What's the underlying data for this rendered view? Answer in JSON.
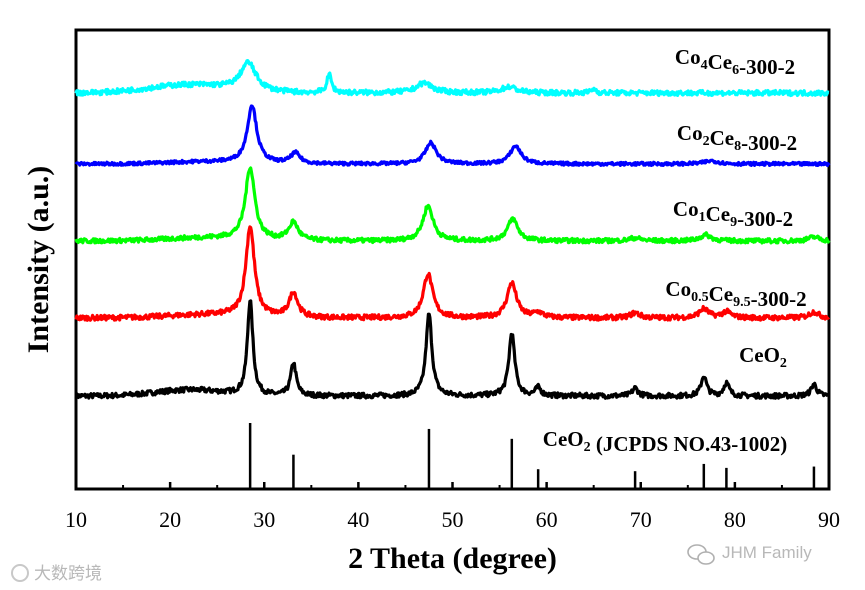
{
  "chart_data": {
    "type": "line",
    "xlabel": "2 Theta (degree)",
    "ylabel": "Intensity (a.u.)",
    "xlim": [
      10,
      90
    ],
    "xticks": [
      10,
      20,
      30,
      40,
      50,
      60,
      70,
      80,
      90
    ],
    "yticks_shown": false,
    "series": [
      {
        "name": "CeO2",
        "label_main": "CeO",
        "label_parts": [
          {
            "t": "CeO"
          },
          {
            "t": "2",
            "sub": true
          }
        ],
        "color": "#000000",
        "peaks": [
          {
            "x": 28.5,
            "h": 0.95,
            "w": 0.35
          },
          {
            "x": 33.1,
            "h": 0.33,
            "w": 0.35
          },
          {
            "x": 47.5,
            "h": 0.82,
            "w": 0.38
          },
          {
            "x": 56.3,
            "h": 0.63,
            "w": 0.38
          },
          {
            "x": 59.1,
            "h": 0.08,
            "w": 0.35
          },
          {
            "x": 69.4,
            "h": 0.08,
            "w": 0.35
          },
          {
            "x": 76.7,
            "h": 0.2,
            "w": 0.35
          },
          {
            "x": 79.1,
            "h": 0.13,
            "w": 0.35
          },
          {
            "x": 88.4,
            "h": 0.12,
            "w": 0.35
          }
        ],
        "hump": {
          "center": 22,
          "h": 0.06,
          "w": 5
        },
        "noise": 0.025
      },
      {
        "name": "Co0.5Ce9.5-300-2",
        "label_parts": [
          {
            "t": "Co"
          },
          {
            "t": "0.5",
            "sub": true
          },
          {
            "t": "Ce"
          },
          {
            "t": "9.5",
            "sub": true
          },
          {
            "t": "-300-2"
          }
        ],
        "color": "#ff0000",
        "peaks": [
          {
            "x": 28.5,
            "h": 0.9,
            "w": 0.55
          },
          {
            "x": 33.1,
            "h": 0.25,
            "w": 0.55
          },
          {
            "x": 47.4,
            "h": 0.44,
            "w": 0.6
          },
          {
            "x": 56.3,
            "h": 0.35,
            "w": 0.6
          },
          {
            "x": 59.1,
            "h": 0.05,
            "w": 0.6
          },
          {
            "x": 69.4,
            "h": 0.05,
            "w": 0.6
          },
          {
            "x": 76.7,
            "h": 0.09,
            "w": 0.6
          },
          {
            "x": 79.1,
            "h": 0.06,
            "w": 0.6
          },
          {
            "x": 88.4,
            "h": 0.06,
            "w": 0.6
          }
        ],
        "hump": {
          "center": 24,
          "h": 0.03,
          "w": 6
        },
        "noise": 0.025
      },
      {
        "name": "Co1Ce9-300-2",
        "label_parts": [
          {
            "t": "Co"
          },
          {
            "t": "1",
            "sub": true
          },
          {
            "t": "Ce"
          },
          {
            "t": "9",
            "sub": true
          },
          {
            "t": "-300-2"
          }
        ],
        "color": "#00ff00",
        "peaks": [
          {
            "x": 28.5,
            "h": 0.72,
            "w": 0.6
          },
          {
            "x": 33.1,
            "h": 0.18,
            "w": 0.6
          },
          {
            "x": 47.4,
            "h": 0.35,
            "w": 0.65
          },
          {
            "x": 56.4,
            "h": 0.22,
            "w": 0.65
          },
          {
            "x": 69.4,
            "h": 0.03,
            "w": 0.7
          },
          {
            "x": 76.9,
            "h": 0.06,
            "w": 0.7
          },
          {
            "x": 88.4,
            "h": 0.04,
            "w": 0.7
          }
        ],
        "hump": {
          "center": 24,
          "h": 0.03,
          "w": 6
        },
        "noise": 0.022
      },
      {
        "name": "Co2Ce8-300-2",
        "label_parts": [
          {
            "t": "Co"
          },
          {
            "t": "2",
            "sub": true
          },
          {
            "t": "Ce"
          },
          {
            "t": "8",
            "sub": true
          },
          {
            "t": "-300-2"
          }
        ],
        "color": "#0000ff",
        "peaks": [
          {
            "x": 28.7,
            "h": 0.55,
            "w": 0.6
          },
          {
            "x": 33.3,
            "h": 0.1,
            "w": 0.6
          },
          {
            "x": 47.7,
            "h": 0.2,
            "w": 0.7
          },
          {
            "x": 56.7,
            "h": 0.17,
            "w": 0.7
          },
          {
            "x": 77.5,
            "h": 0.03,
            "w": 0.9
          }
        ],
        "hump": {
          "center": 24,
          "h": 0.02,
          "w": 6
        },
        "noise": 0.015
      },
      {
        "name": "Co4Ce6-300-2",
        "label_parts": [
          {
            "t": "Co"
          },
          {
            "t": "4",
            "sub": true
          },
          {
            "t": "Ce"
          },
          {
            "t": "6",
            "sub": true
          },
          {
            "t": "-300-2"
          }
        ],
        "color": "#00ffff",
        "peaks": [
          {
            "x": 28.3,
            "h": 0.28,
            "w": 1.0
          },
          {
            "x": 36.9,
            "h": 0.18,
            "w": 0.3
          },
          {
            "x": 47.0,
            "h": 0.1,
            "w": 1.0
          },
          {
            "x": 56.0,
            "h": 0.06,
            "w": 1.0
          },
          {
            "x": 65.0,
            "h": 0.04,
            "w": 0.3
          }
        ],
        "hump": {
          "center": 22,
          "h": 0.08,
          "w": 6
        },
        "noise": 0.025
      }
    ],
    "reference": {
      "label_parts": [
        {
          "t": "CeO"
        },
        {
          "t": "2",
          "sub": true
        },
        {
          "t": " (JCPDS NO.43-1002)"
        }
      ],
      "sticks": [
        {
          "x": 28.5,
          "i": 100
        },
        {
          "x": 33.1,
          "i": 52
        },
        {
          "x": 47.5,
          "i": 91
        },
        {
          "x": 56.3,
          "i": 76
        },
        {
          "x": 59.1,
          "i": 30
        },
        {
          "x": 69.4,
          "i": 27
        },
        {
          "x": 76.7,
          "i": 38
        },
        {
          "x": 79.1,
          "i": 32
        },
        {
          "x": 88.4,
          "i": 34
        }
      ]
    }
  },
  "watermarks": {
    "left": "大数跨境",
    "right": "JHM Family"
  }
}
